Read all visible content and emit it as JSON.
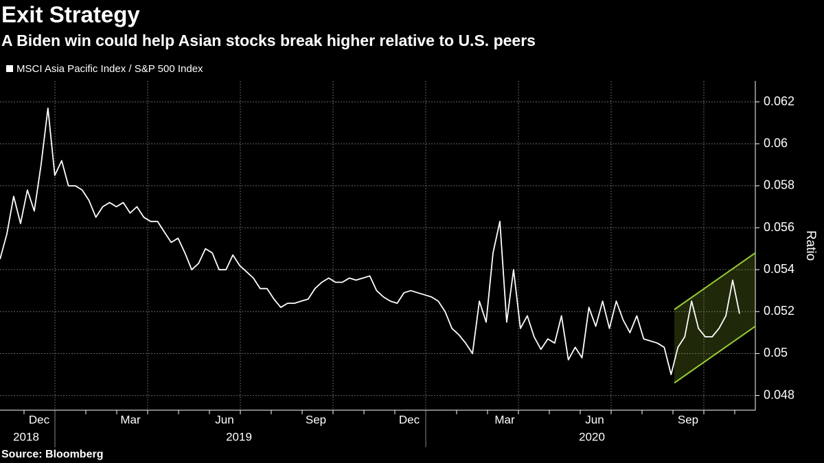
{
  "chart_data": {
    "type": "line",
    "title": "Exit Strategy",
    "subtitle": "A Biden win could help Asian stocks break higher relative to U.S. peers",
    "source": "Source: Bloomberg",
    "y_axis_label": "Ratio",
    "month_labels": [
      "Dec",
      "Mar",
      "Jun",
      "Sep",
      "Dec",
      "Mar",
      "Jun",
      "Sep"
    ],
    "year_labels": [
      "2018",
      "2019",
      "2020"
    ],
    "series": [
      {
        "name": "MSCI Asia Pacific Index / S&P 500 Index",
        "color": "#ffffff",
        "values": [
          0.0545,
          0.0557,
          0.0575,
          0.0562,
          0.0578,
          0.0568,
          0.059,
          0.0617,
          0.0585,
          0.0592,
          0.058,
          0.058,
          0.0578,
          0.0573,
          0.0565,
          0.057,
          0.0572,
          0.057,
          0.0572,
          0.0567,
          0.057,
          0.0565,
          0.0563,
          0.0563,
          0.0558,
          0.0553,
          0.0555,
          0.0548,
          0.054,
          0.0543,
          0.055,
          0.0548,
          0.054,
          0.054,
          0.0547,
          0.0542,
          0.0539,
          0.0536,
          0.0531,
          0.0531,
          0.0526,
          0.0522,
          0.0524,
          0.0524,
          0.0525,
          0.0526,
          0.0531,
          0.0534,
          0.0536,
          0.0534,
          0.0534,
          0.0536,
          0.0535,
          0.0536,
          0.0537,
          0.053,
          0.0527,
          0.0525,
          0.0524,
          0.0529,
          0.053,
          0.0529,
          0.0528,
          0.0527,
          0.0525,
          0.052,
          0.0512,
          0.0509,
          0.0505,
          0.05,
          0.0525,
          0.0515,
          0.0548,
          0.0563,
          0.0515,
          0.054,
          0.0512,
          0.0518,
          0.0508,
          0.0502,
          0.0507,
          0.0505,
          0.0518,
          0.0497,
          0.0503,
          0.0498,
          0.0522,
          0.0513,
          0.0525,
          0.0512,
          0.0525,
          0.0516,
          0.051,
          0.0518,
          0.0507,
          0.0506,
          0.0505,
          0.0503,
          0.049,
          0.0503,
          0.0508,
          0.0525,
          0.0512,
          0.0508,
          0.0508,
          0.0512,
          0.0518,
          0.0535,
          0.0519
        ]
      }
    ],
    "channel": {
      "color": "#9acd32",
      "upper": [
        0.0521,
        0.0548
      ],
      "lower": [
        0.0486,
        0.0513
      ]
    },
    "ylim": [
      0.0473,
      0.063
    ],
    "yticks": [
      0.048,
      0.05,
      0.052,
      0.054,
      0.056,
      0.058,
      0.06,
      0.062
    ],
    "grid": true
  }
}
